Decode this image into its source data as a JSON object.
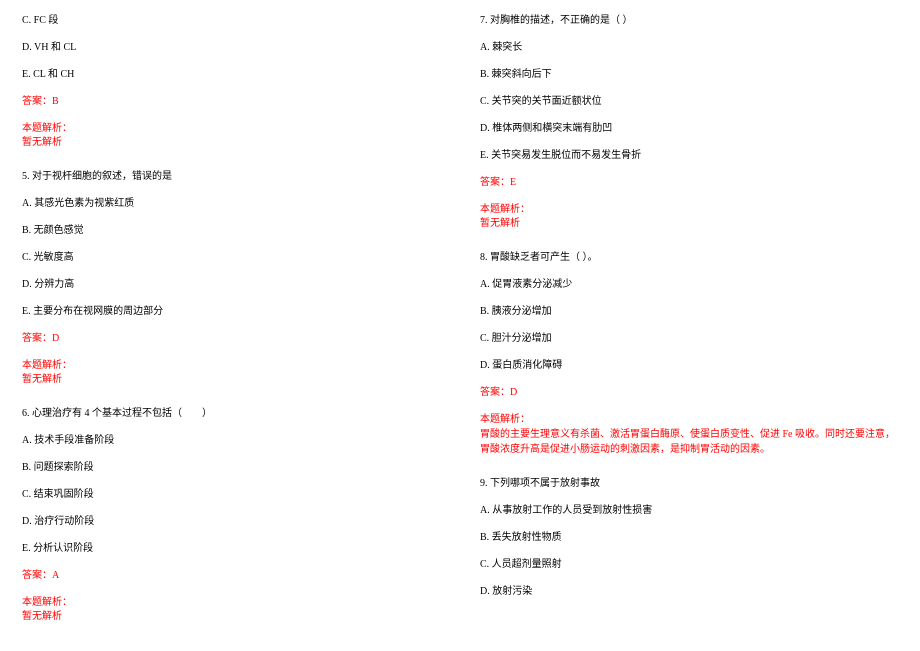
{
  "left": {
    "q4_c": "C. FC 段",
    "q4_d": "D. VH 和 CL",
    "q4_e": "E. CL 和 CH",
    "q4_ans": "答案：B",
    "q4_exp_label": "本题解析：",
    "q4_exp_text": "暂无解析",
    "q5_stem": "5. 对于视杆细胞的叙述，错误的是",
    "q5_a": "A. 其感光色素为视紫红质",
    "q5_b": "B. 无颜色感觉",
    "q5_c": "C. 光敏度高",
    "q5_d": "D. 分辨力高",
    "q5_e": "E. 主要分布在视网膜的周边部分",
    "q5_ans": "答案：D",
    "q5_exp_label": "本题解析：",
    "q5_exp_text": "暂无解析",
    "q6_stem": "6. 心理治疗有 4 个基本过程不包括（　　）",
    "q6_a": "A. 技术手段准备阶段",
    "q6_b": "B. 问题探索阶段",
    "q6_c": "C. 结束巩固阶段",
    "q6_d": "D. 治疗行动阶段",
    "q6_e": "E. 分析认识阶段",
    "q6_ans": "答案：A",
    "q6_exp_label": "本题解析：",
    "q6_exp_text": "暂无解析"
  },
  "right": {
    "q7_stem": "7. 对胸椎的描述，不正确的是（ ）",
    "q7_a": "A. 棘突长",
    "q7_b": "B. 棘突斜向后下",
    "q7_c": "C. 关节突的关节面近额状位",
    "q7_d": "D. 椎体两侧和横突末端有肋凹",
    "q7_e": "E. 关节突易发生脱位而不易发生骨折",
    "q7_ans": "答案：E",
    "q7_exp_label": "本题解析：",
    "q7_exp_text": "暂无解析",
    "q8_stem": "8. 胃酸缺乏者可产生（ ）。",
    "q8_a": "A. 促胃液素分泌减少",
    "q8_b": "B. 胰液分泌增加",
    "q8_c": "C. 胆汁分泌增加",
    "q8_d": "D. 蛋白质消化障碍",
    "q8_ans": "答案：D",
    "q8_exp_label": "本题解析：",
    "q8_exp_text": "胃酸的主要生理意义有杀菌、激活胃蛋白酶原、使蛋白质变性、促进 Fe 吸收。同时还要注意，胃酸浓度升高是促进小肠运动的刺激因素，是抑制胃活动的因素。",
    "q9_stem": "9. 下列哪项不属于放射事故",
    "q9_a": "A. 从事放射工作的人员受到放射性损害",
    "q9_b": "B. 丢失放射性物质",
    "q9_c": "C. 人员超剂量照射",
    "q9_d": "D. 放射污染"
  }
}
